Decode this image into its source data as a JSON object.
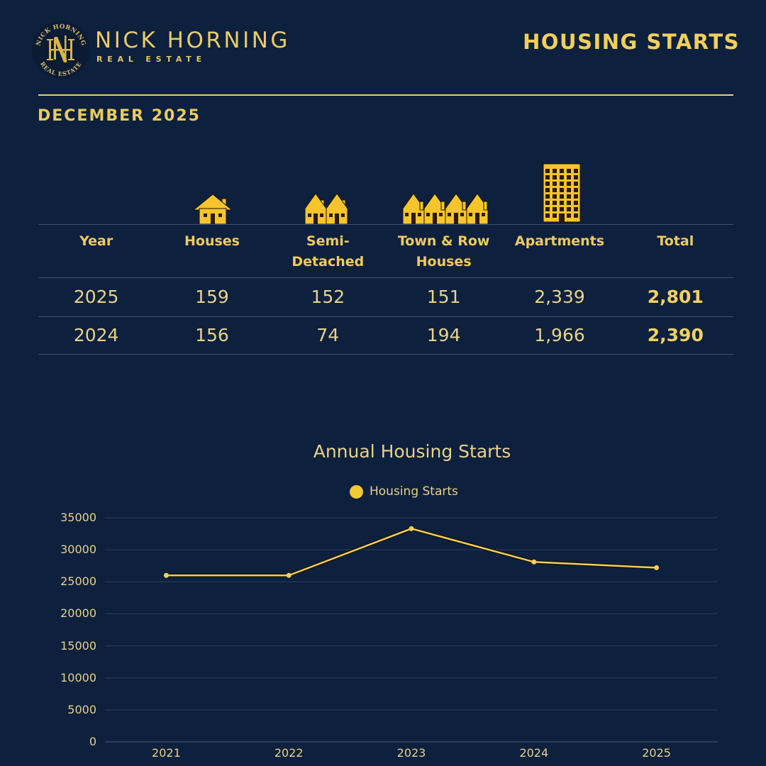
{
  "brand": {
    "name": "NICK HORNING",
    "subtitle": "REAL ESTATE",
    "emblem_top_text": "NICK HORNING",
    "emblem_bottom_text": "REAL ESTATE",
    "emblem_monogram": "HN"
  },
  "header": {
    "title": "HOUSING STARTS",
    "period": "DECEMBER 2025"
  },
  "colors": {
    "background": "#0D203D",
    "accent_gold": "#F2CF5B",
    "icon_yellow": "#F5C52B",
    "grid": "#2A3F60"
  },
  "table": {
    "icons": [
      "house-icon",
      "semi-detached-icon",
      "town-row-houses-icon",
      "apartment-building-icon"
    ],
    "columns": [
      "Year",
      "Houses",
      "Semi-\nDetached",
      "Town & Row\nHouses",
      "Apartments",
      "Total"
    ],
    "column_lines": [
      [
        "Year"
      ],
      [
        "Houses"
      ],
      [
        "Semi-",
        "Detached"
      ],
      [
        "Town & Row",
        "Houses"
      ],
      [
        "Apartments"
      ],
      [
        "Total"
      ]
    ],
    "rows": [
      {
        "year": "2025",
        "houses": "159",
        "semi_detached": "152",
        "town_row": "151",
        "apartments": "2,339",
        "total": "2,801"
      },
      {
        "year": "2024",
        "houses": "156",
        "semi_detached": "74",
        "town_row": "194",
        "apartments": "1,966",
        "total": "2,390"
      }
    ]
  },
  "chart_data": {
    "type": "line",
    "title": "Annual Housing Starts",
    "xlabel": "",
    "ylabel": "",
    "categories": [
      "2021",
      "2022",
      "2023",
      "2024",
      "2025"
    ],
    "series": [
      {
        "name": "Housing Starts",
        "values": [
          26000,
          26000,
          33300,
          28100,
          27200
        ],
        "color": "#F2CF5B"
      }
    ],
    "yticks": [
      "35000",
      "30000",
      "25000",
      "20000",
      "15000",
      "10000",
      "5000",
      "0"
    ],
    "ylim": [
      0,
      35000
    ],
    "grid": true,
    "legend_position": "top"
  }
}
